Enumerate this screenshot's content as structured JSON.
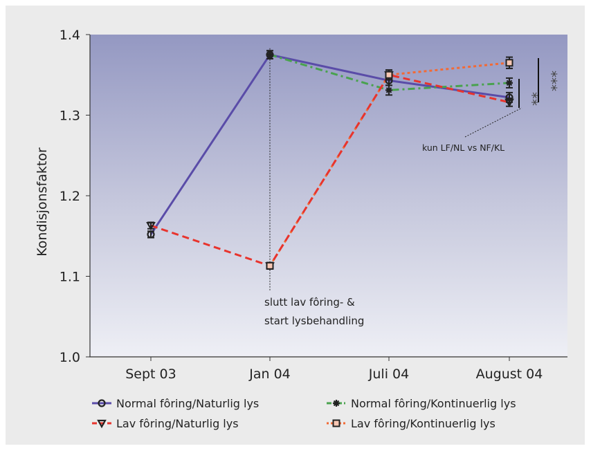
{
  "chart_data": {
    "type": "line",
    "ylabel": "Kondisjonsfaktor",
    "xlabel": "",
    "categories": [
      "Sept 03",
      "Jan 04",
      "Juli 04",
      "August 04"
    ],
    "ylim": [
      1.0,
      1.4
    ],
    "yticks": [
      "1.0",
      "1.1",
      "1.2",
      "1.3",
      "1.4"
    ],
    "grid": false,
    "legend_position": "bottom",
    "series": [
      {
        "name": "Normal fôring/Naturlig lys",
        "color": "#5a4ca8",
        "dash": "solid",
        "marker": "circle",
        "values": [
          1.152,
          1.375,
          1.343,
          1.322
        ],
        "errors": [
          0.004,
          0.005,
          0.006,
          0.006
        ]
      },
      {
        "name": "Lav fôring/Naturlig lys",
        "color": "#e8342d",
        "dash": "dashed",
        "marker": "triangle-down",
        "values": [
          1.163,
          1.113,
          1.35,
          1.316
        ],
        "errors": [
          0.004,
          0.004,
          0.006,
          0.005
        ]
      },
      {
        "name": "Normal fôring/Kontinuerlig lys",
        "color": "#49a24e",
        "dash": "dashdot",
        "marker": "star",
        "values": [
          null,
          1.375,
          1.331,
          1.34
        ],
        "errors": [
          null,
          0.005,
          0.006,
          0.006
        ]
      },
      {
        "name": "Lav fôring/Kontinuerlig lys",
        "color": "#f26a35",
        "dash": "dotted",
        "marker": "square",
        "values": [
          null,
          1.113,
          1.35,
          1.365
        ],
        "errors": [
          null,
          0.004,
          0.006,
          0.007
        ]
      }
    ],
    "annotations": {
      "vline_label_1": "slutt lav fôring- &",
      "vline_label_2": "start lysbehandling",
      "callout": "kun LF/NL vs NF/KL",
      "sig_short": "**",
      "sig_long": "***"
    }
  }
}
